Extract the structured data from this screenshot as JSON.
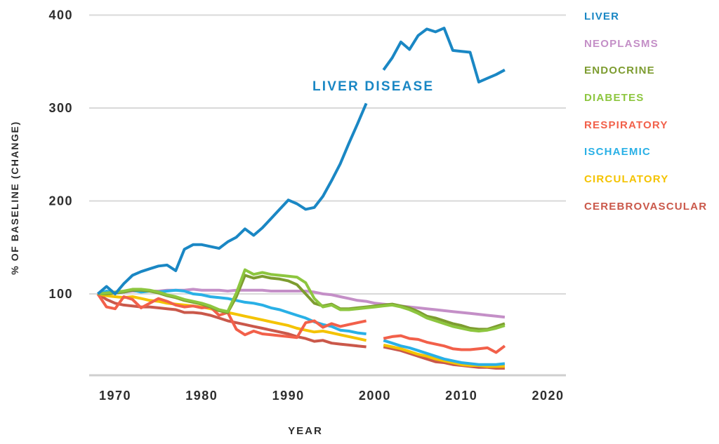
{
  "colors": {
    "background": "#ffffff",
    "text": "#2d2d2d",
    "gridline": "#d9d9d9",
    "axis_line": "#cfcfcf"
  },
  "legend": [
    {
      "label": "LIVER",
      "color": "#1a87c4"
    },
    {
      "label": "NEOPLASMS",
      "color": "#c48fc7"
    },
    {
      "label": "ENDOCRINE",
      "color": "#7d9c30"
    },
    {
      "label": "DIABETES",
      "color": "#8dc63f"
    },
    {
      "label": "RESPIRATORY",
      "color": "#f2604a"
    },
    {
      "label": "ISCHAEMIC",
      "color": "#29b0e6"
    },
    {
      "label": "CIRCULATORY",
      "color": "#f4c300"
    },
    {
      "label": "CEREBROVASCULAR",
      "color": "#ca584a"
    }
  ],
  "chart_data": {
    "type": "line",
    "title": "",
    "xlabel": "YEAR",
    "ylabel": "% OF BASELINE (CHANGE)",
    "annotation": {
      "text": "LIVER DISEASE",
      "color": "#1a87c4"
    },
    "x_ticks": [
      1970,
      1980,
      1990,
      2000,
      2010,
      2020
    ],
    "y_ticks": [
      400,
      300,
      200,
      100
    ],
    "xlim": [
      1967,
      2022
    ],
    "ylim": [
      12,
      410
    ],
    "grid": "horizontal",
    "legend_position": "right",
    "gap_year": 2000,
    "years": [
      1968,
      1969,
      1970,
      1971,
      1972,
      1973,
      1974,
      1975,
      1976,
      1977,
      1978,
      1979,
      1980,
      1981,
      1982,
      1983,
      1984,
      1985,
      1986,
      1987,
      1988,
      1989,
      1990,
      1991,
      1992,
      1993,
      1994,
      1995,
      1996,
      1997,
      1998,
      1999,
      2000,
      2001,
      2002,
      2003,
      2004,
      2005,
      2006,
      2007,
      2008,
      2009,
      2010,
      2011,
      2012,
      2013,
      2014,
      2015
    ],
    "series": [
      {
        "name": "LIVER",
        "color": "#1a87c4",
        "values": [
          100,
          108,
          100,
          111,
          120,
          124,
          127,
          130,
          131,
          125,
          148,
          153,
          153,
          151,
          149,
          156,
          161,
          170,
          163,
          171,
          181,
          191,
          201,
          197,
          191,
          193,
          205,
          222,
          240,
          262,
          283,
          305,
          null,
          341,
          354,
          371,
          363,
          378,
          385,
          382,
          386,
          362,
          361,
          360,
          328,
          332,
          336,
          341
        ]
      },
      {
        "name": "NEOPLASMS",
        "color": "#c48fc7",
        "values": [
          100,
          101,
          102,
          102,
          103,
          103,
          103,
          103,
          104,
          104,
          104,
          105,
          104,
          104,
          104,
          103,
          104,
          104,
          104,
          104,
          103,
          103,
          103,
          103,
          103,
          102,
          100,
          99,
          97,
          95,
          93,
          92,
          90,
          89,
          88,
          87,
          86,
          85,
          84,
          83,
          82,
          81,
          80,
          79,
          78,
          77,
          76,
          75
        ]
      },
      {
        "name": "ENDOCRINE",
        "color": "#7d9c30",
        "values": [
          100,
          100,
          101,
          102,
          104,
          104,
          103,
          101,
          98,
          96,
          93,
          91,
          89,
          86,
          82,
          80,
          97,
          120,
          117,
          119,
          117,
          116,
          114,
          110,
          100,
          90,
          87,
          89,
          84,
          84,
          85,
          86,
          87,
          88,
          89,
          87,
          85,
          81,
          76,
          74,
          71,
          68,
          66,
          63,
          62,
          62,
          65,
          68
        ]
      },
      {
        "name": "DIABETES",
        "color": "#8dc63f",
        "values": [
          100,
          101,
          102,
          103,
          105,
          105,
          104,
          102,
          99,
          97,
          94,
          92,
          90,
          87,
          83,
          81,
          101,
          126,
          121,
          123,
          121,
          120,
          119,
          118,
          112,
          95,
          86,
          88,
          83,
          83,
          84,
          85,
          86,
          87,
          88,
          86,
          83,
          79,
          74,
          71,
          68,
          65,
          63,
          61,
          60,
          61,
          63,
          66
        ]
      },
      {
        "name": "RESPIRATORY",
        "color": "#f2604a",
        "values": [
          100,
          86,
          84,
          97,
          94,
          85,
          90,
          95,
          92,
          88,
          86,
          87,
          85,
          86,
          77,
          80,
          62,
          56,
          60,
          57,
          56,
          55,
          54,
          53,
          69,
          71,
          64,
          68,
          65,
          67,
          69,
          71,
          null,
          52,
          54,
          55,
          52,
          51,
          48,
          46,
          44,
          41,
          40,
          40,
          41,
          42,
          37,
          44
        ]
      },
      {
        "name": "ISCHAEMIC",
        "color": "#29b0e6",
        "values": [
          100,
          103,
          101,
          102,
          104,
          102,
          103,
          102,
          103,
          104,
          103,
          100,
          99,
          97,
          96,
          95,
          93,
          91,
          90,
          88,
          85,
          83,
          80,
          77,
          74,
          70,
          67,
          65,
          61,
          60,
          58,
          57,
          null,
          50,
          47,
          44,
          42,
          39,
          36,
          33,
          30,
          28,
          26,
          25,
          24,
          24,
          24,
          25
        ]
      },
      {
        "name": "CIRCULATORY",
        "color": "#f4c300",
        "values": [
          100,
          98,
          97,
          96,
          97,
          95,
          93,
          92,
          90,
          89,
          88,
          87,
          86,
          84,
          82,
          80,
          78,
          76,
          74,
          72,
          70,
          68,
          66,
          63,
          61,
          59,
          60,
          58,
          56,
          54,
          52,
          50,
          null,
          45,
          43,
          41,
          38,
          35,
          33,
          30,
          28,
          26,
          24,
          23,
          23,
          22,
          22,
          22
        ]
      },
      {
        "name": "CEREBROVASCULAR",
        "color": "#ca584a",
        "values": [
          100,
          94,
          90,
          88,
          87,
          86,
          86,
          85,
          84,
          83,
          80,
          80,
          79,
          77,
          74,
          71,
          69,
          67,
          65,
          63,
          61,
          59,
          57,
          54,
          52,
          49,
          50,
          47,
          46,
          45,
          44,
          43,
          null,
          43,
          41,
          39,
          36,
          33,
          30,
          27,
          26,
          24,
          23,
          22,
          21,
          21,
          20,
          20
        ]
      }
    ]
  }
}
